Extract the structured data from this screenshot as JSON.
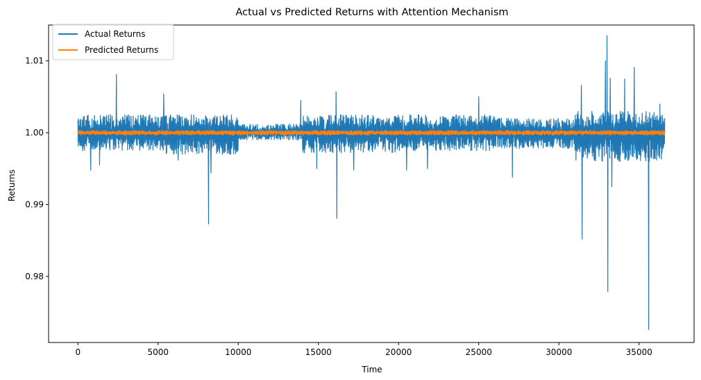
{
  "chart_data": {
    "type": "line",
    "title": "Actual vs Predicted Returns with Attention Mechanism",
    "xlabel": "Time",
    "ylabel": "Returns",
    "xlim": [
      -1830,
      38430
    ],
    "ylim": [
      0.9708,
      1.015
    ],
    "x_ticks": [
      0,
      5000,
      10000,
      15000,
      20000,
      25000,
      30000,
      35000
    ],
    "x_tick_labels": [
      "0",
      "5000",
      "10000",
      "15000",
      "20000",
      "25000",
      "30000",
      "35000"
    ],
    "y_ticks": [
      0.98,
      0.99,
      1.0,
      1.01
    ],
    "y_tick_labels": [
      "0.98",
      "0.99",
      "1.00",
      "1.01"
    ],
    "grid": false,
    "legend_position": "upper-left",
    "x_range": [
      0,
      36600
    ],
    "series": [
      {
        "name": "Actual Returns",
        "color": "#1f77b4",
        "baseline": 1.0,
        "volatility_profile": [
          {
            "x_start": 0,
            "x_end": 5000,
            "band": [
              0.9975,
              1.0025
            ]
          },
          {
            "x_start": 5000,
            "x_end": 10000,
            "band": [
              0.997,
              1.0025
            ]
          },
          {
            "x_start": 10000,
            "x_end": 14000,
            "band": [
              0.999,
              1.0012
            ]
          },
          {
            "x_start": 14000,
            "x_end": 20000,
            "band": [
              0.9972,
              1.0025
            ]
          },
          {
            "x_start": 20000,
            "x_end": 26000,
            "band": [
              0.9975,
              1.0025
            ]
          },
          {
            "x_start": 26000,
            "x_end": 31000,
            "band": [
              0.9978,
              1.002
            ]
          },
          {
            "x_start": 31000,
            "x_end": 36600,
            "band": [
              0.996,
              1.003
            ]
          }
        ],
        "spikes": [
          {
            "x": 800,
            "y": 0.9948
          },
          {
            "x": 1350,
            "y": 0.9955
          },
          {
            "x": 2400,
            "y": 1.0081
          },
          {
            "x": 5350,
            "y": 1.0054
          },
          {
            "x": 6250,
            "y": 0.9962
          },
          {
            "x": 8150,
            "y": 0.9873
          },
          {
            "x": 8300,
            "y": 0.9944
          },
          {
            "x": 13900,
            "y": 1.0045
          },
          {
            "x": 14900,
            "y": 0.995
          },
          {
            "x": 16100,
            "y": 1.0057
          },
          {
            "x": 16150,
            "y": 0.9881
          },
          {
            "x": 17200,
            "y": 0.9948
          },
          {
            "x": 20500,
            "y": 0.9948
          },
          {
            "x": 21800,
            "y": 0.995
          },
          {
            "x": 25000,
            "y": 1.005
          },
          {
            "x": 27100,
            "y": 0.9938
          },
          {
            "x": 31400,
            "y": 1.0066
          },
          {
            "x": 31450,
            "y": 0.9852
          },
          {
            "x": 32900,
            "y": 1.01
          },
          {
            "x": 33000,
            "y": 1.0135
          },
          {
            "x": 33050,
            "y": 0.9779
          },
          {
            "x": 33200,
            "y": 1.0076
          },
          {
            "x": 33300,
            "y": 0.9925
          },
          {
            "x": 34100,
            "y": 1.0075
          },
          {
            "x": 34700,
            "y": 1.0091
          },
          {
            "x": 35600,
            "y": 0.9726
          },
          {
            "x": 36300,
            "y": 1.004
          }
        ]
      },
      {
        "name": "Predicted Returns",
        "color": "#ff7f0e",
        "baseline": 1.0,
        "band": [
          0.9997,
          1.0003
        ]
      }
    ]
  }
}
